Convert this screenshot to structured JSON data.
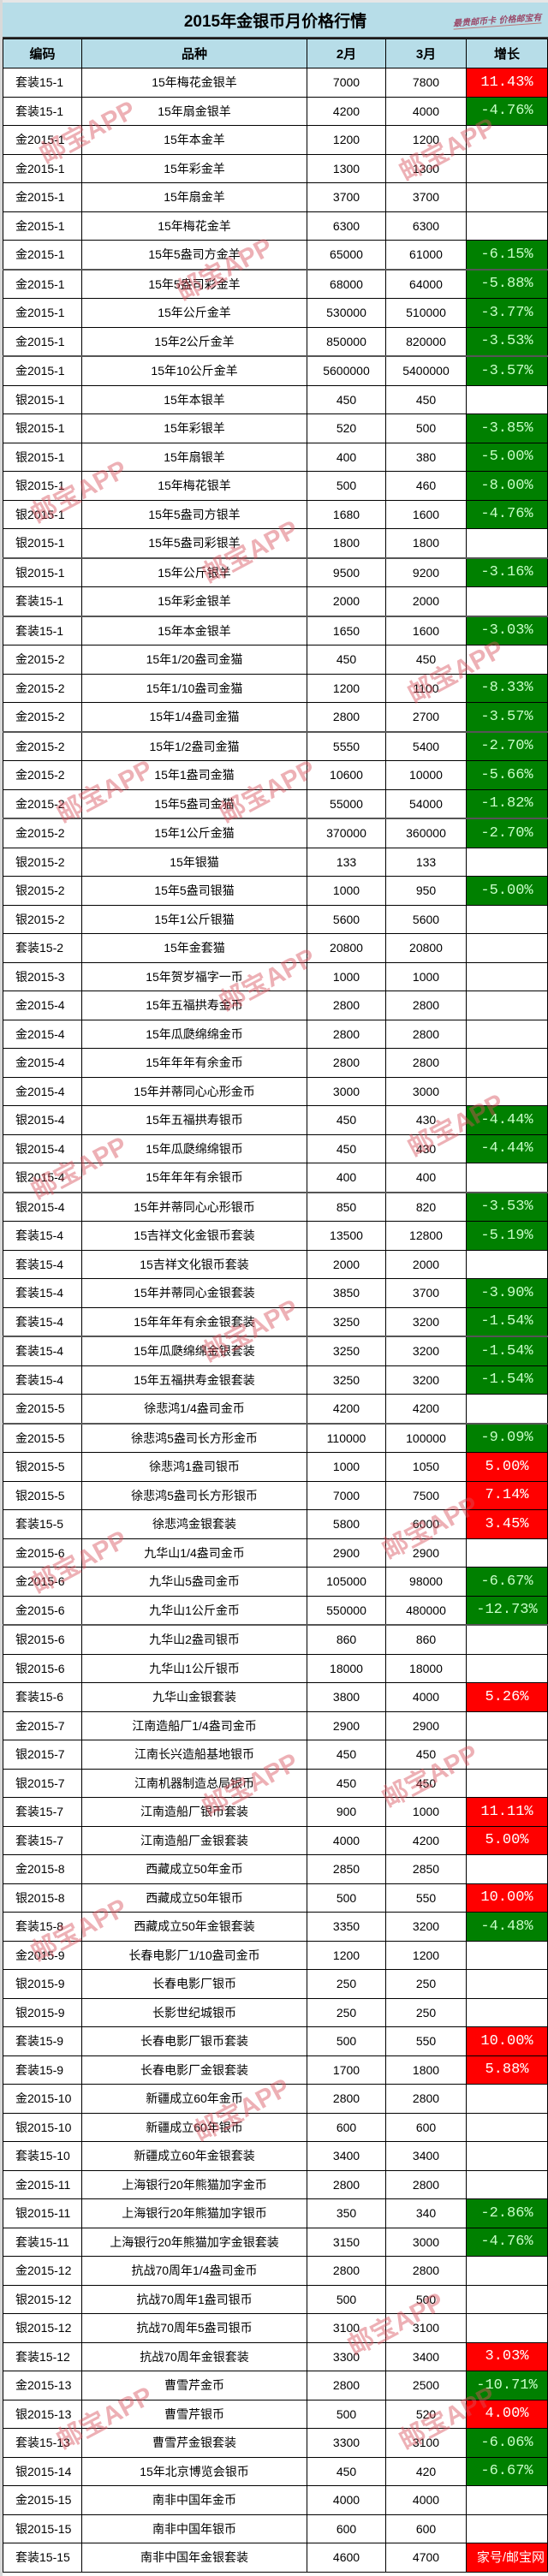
{
  "title": "2015年金银币月价格行情",
  "signature": "最贵邮币卡 价格邮宝有",
  "watermark": "邮宝APP",
  "corner_watermark": "家号/邮宝网",
  "colors": {
    "header_bg": "#b7dde8",
    "up": "#ff0000",
    "down": "#008000"
  },
  "columns": [
    "编码",
    "品种",
    "2月",
    "3月",
    "增长"
  ],
  "rows": [
    [
      "套装15-1",
      "15年梅花金银羊",
      "7000",
      "7800",
      "11.43%",
      "up"
    ],
    [
      "套装15-1",
      "15年扇金银羊",
      "4200",
      "4000",
      "-4.76%",
      "down"
    ],
    [
      "金2015-1",
      "15年本金羊",
      "1200",
      "1200",
      "",
      ""
    ],
    [
      "金2015-1",
      "15年彩金羊",
      "1300",
      "1300",
      "",
      ""
    ],
    [
      "金2015-1",
      "15年扇金羊",
      "3700",
      "3700",
      "",
      ""
    ],
    [
      "金2015-1",
      "15年梅花金羊",
      "6300",
      "6300",
      "",
      ""
    ],
    [
      "金2015-1",
      "15年5盎司方金羊",
      "65000",
      "61000",
      "-6.15%",
      "down"
    ],
    [
      "金2015-1",
      "15年5盎司彩金羊",
      "68000",
      "64000",
      "-5.88%",
      "down"
    ],
    [
      "金2015-1",
      "15年公斤金羊",
      "530000",
      "510000",
      "-3.77%",
      "down"
    ],
    [
      "金2015-1",
      "15年2公斤金羊",
      "850000",
      "820000",
      "-3.53%",
      "down"
    ],
    [
      "金2015-1",
      "15年10公斤金羊",
      "5600000",
      "5400000",
      "-3.57%",
      "down"
    ],
    [
      "银2015-1",
      "15年本银羊",
      "450",
      "450",
      "",
      ""
    ],
    [
      "银2015-1",
      "15年彩银羊",
      "520",
      "500",
      "-3.85%",
      "down"
    ],
    [
      "银2015-1",
      "15年扇银羊",
      "400",
      "380",
      "-5.00%",
      "down"
    ],
    [
      "银2015-1",
      "15年梅花银羊",
      "500",
      "460",
      "-8.00%",
      "down"
    ],
    [
      "银2015-1",
      "15年5盎司方银羊",
      "1680",
      "1600",
      "-4.76%",
      "down"
    ],
    [
      "银2015-1",
      "15年5盎司彩银羊",
      "1800",
      "1800",
      "",
      ""
    ],
    [
      "银2015-1",
      "15年公斤银羊",
      "9500",
      "9200",
      "-3.16%",
      "down"
    ],
    [
      "套装15-1",
      "15年彩金银羊",
      "2000",
      "2000",
      "",
      ""
    ],
    [
      "套装15-1",
      "15年本金银羊",
      "1650",
      "1600",
      "-3.03%",
      "down"
    ],
    [
      "金2015-2",
      "15年1/20盎司金猫",
      "450",
      "450",
      "",
      ""
    ],
    [
      "金2015-2",
      "15年1/10盎司金猫",
      "1200",
      "1100",
      "-8.33%",
      "down"
    ],
    [
      "金2015-2",
      "15年1/4盎司金猫",
      "2800",
      "2700",
      "-3.57%",
      "down"
    ],
    [
      "金2015-2",
      "15年1/2盎司金猫",
      "5550",
      "5400",
      "-2.70%",
      "down"
    ],
    [
      "金2015-2",
      "15年1盎司金猫",
      "10600",
      "10000",
      "-5.66%",
      "down"
    ],
    [
      "金2015-2",
      "15年5盎司金猫",
      "55000",
      "54000",
      "-1.82%",
      "down"
    ],
    [
      "金2015-2",
      "15年1公斤金猫",
      "370000",
      "360000",
      "-2.70%",
      "down"
    ],
    [
      "银2015-2",
      "15年银猫",
      "133",
      "133",
      "",
      ""
    ],
    [
      "银2015-2",
      "15年5盎司银猫",
      "1000",
      "950",
      "-5.00%",
      "down"
    ],
    [
      "银2015-2",
      "15年1公斤银猫",
      "5600",
      "5600",
      "",
      ""
    ],
    [
      "套装15-2",
      "15年金套猫",
      "20800",
      "20800",
      "",
      ""
    ],
    [
      "银2015-3",
      "15年贺岁福字一币",
      "1000",
      "1000",
      "",
      ""
    ],
    [
      "金2015-4",
      "15年五福拱寿金币",
      "2800",
      "2800",
      "",
      ""
    ],
    [
      "金2015-4",
      "15年瓜瓞绵绵金币",
      "2800",
      "2800",
      "",
      ""
    ],
    [
      "金2015-4",
      "15年年年有余金币",
      "2800",
      "2800",
      "",
      ""
    ],
    [
      "金2015-4",
      "15年并蒂同心心形金币",
      "3000",
      "3000",
      "",
      ""
    ],
    [
      "银2015-4",
      "15年五福拱寿银币",
      "450",
      "430",
      "-4.44%",
      "down"
    ],
    [
      "银2015-4",
      "15年瓜瓞绵绵银币",
      "450",
      "430",
      "-4.44%",
      "down"
    ],
    [
      "银2015-4",
      "15年年年有余银币",
      "400",
      "400",
      "",
      ""
    ],
    [
      "银2015-4",
      "15年并蒂同心心形银币",
      "850",
      "820",
      "-3.53%",
      "down"
    ],
    [
      "套装15-4",
      "15吉祥文化金银币套装",
      "13500",
      "12800",
      "-5.19%",
      "down"
    ],
    [
      "套装15-4",
      "15吉祥文化银币套装",
      "2000",
      "2000",
      "",
      ""
    ],
    [
      "套装15-4",
      "15年并蒂同心金银套装",
      "3850",
      "3700",
      "-3.90%",
      "down"
    ],
    [
      "套装15-4",
      "15年年年有余金银套装",
      "3250",
      "3200",
      "-1.54%",
      "down"
    ],
    [
      "套装15-4",
      "15年瓜瓞绵绵金银套装",
      "3250",
      "3200",
      "-1.54%",
      "down"
    ],
    [
      "套装15-4",
      "15年五福拱寿金银套装",
      "3250",
      "3200",
      "-1.54%",
      "down"
    ],
    [
      "金2015-5",
      "徐悲鸿1/4盎司金币",
      "4200",
      "4200",
      "",
      ""
    ],
    [
      "金2015-5",
      "徐悲鸿5盎司长方形金币",
      "110000",
      "100000",
      "-9.09%",
      "down"
    ],
    [
      "银2015-5",
      "徐悲鸿1盎司银币",
      "1000",
      "1050",
      "5.00%",
      "up"
    ],
    [
      "银2015-5",
      "徐悲鸿5盎司长方形银币",
      "7000",
      "7500",
      "7.14%",
      "up"
    ],
    [
      "套装15-5",
      "徐悲鸿金银套装",
      "5800",
      "6000",
      "3.45%",
      "up"
    ],
    [
      "金2015-6",
      "九华山1/4盎司金币",
      "2900",
      "2900",
      "",
      ""
    ],
    [
      "金2015-6",
      "九华山5盎司金币",
      "105000",
      "98000",
      "-6.67%",
      "down"
    ],
    [
      "金2015-6",
      "九华山1公斤金币",
      "550000",
      "480000",
      "-12.73%",
      "down"
    ],
    [
      "银2015-6",
      "九华山2盎司银币",
      "860",
      "860",
      "",
      ""
    ],
    [
      "银2015-6",
      "九华山1公斤银币",
      "18000",
      "18000",
      "",
      ""
    ],
    [
      "套装15-6",
      "九华山金银套装",
      "3800",
      "4000",
      "5.26%",
      "up"
    ],
    [
      "金2015-7",
      "江南造船厂1/4盎司金币",
      "2900",
      "2900",
      "",
      ""
    ],
    [
      "银2015-7",
      "江南长兴造船基地银币",
      "450",
      "450",
      "",
      ""
    ],
    [
      "银2015-7",
      "江南机器制造总局银币",
      "450",
      "450",
      "",
      ""
    ],
    [
      "套装15-7",
      "江南造船厂银币套装",
      "900",
      "1000",
      "11.11%",
      "up"
    ],
    [
      "套装15-7",
      "江南造船厂金银套装",
      "4000",
      "4200",
      "5.00%",
      "up"
    ],
    [
      "金2015-8",
      "西藏成立50年金币",
      "2850",
      "2850",
      "",
      ""
    ],
    [
      "银2015-8",
      "西藏成立50年银币",
      "500",
      "550",
      "10.00%",
      "up"
    ],
    [
      "套装15-8",
      "西藏成立50年金银套装",
      "3350",
      "3200",
      "-4.48%",
      "down"
    ],
    [
      "金2015-9",
      "长春电影厂1/10盎司金币",
      "1200",
      "1200",
      "",
      ""
    ],
    [
      "银2015-9",
      "长春电影厂银币",
      "250",
      "250",
      "",
      ""
    ],
    [
      "银2015-9",
      "长影世纪城银币",
      "250",
      "250",
      "",
      ""
    ],
    [
      "套装15-9",
      "长春电影厂银币套装",
      "500",
      "550",
      "10.00%",
      "up"
    ],
    [
      "套装15-9",
      "长春电影厂金银套装",
      "1700",
      "1800",
      "5.88%",
      "up"
    ],
    [
      "金2015-10",
      "新疆成立60年金币",
      "2800",
      "2800",
      "",
      ""
    ],
    [
      "银2015-10",
      "新疆成立60年银币",
      "600",
      "600",
      "",
      ""
    ],
    [
      "套装15-10",
      "新疆成立60年金银套装",
      "3400",
      "3400",
      "",
      ""
    ],
    [
      "金2015-11",
      "上海银行20年熊猫加字金币",
      "2800",
      "2800",
      "",
      ""
    ],
    [
      "银2015-11",
      "上海银行20年熊猫加字银币",
      "350",
      "340",
      "-2.86%",
      "down"
    ],
    [
      "套装15-11",
      "上海银行20年熊猫加字金银套装",
      "3150",
      "3000",
      "-4.76%",
      "down"
    ],
    [
      "金2015-12",
      "抗战70周年1/4盎司金币",
      "2800",
      "2800",
      "",
      ""
    ],
    [
      "银2015-12",
      "抗战70周年1盎司银币",
      "500",
      "500",
      "",
      ""
    ],
    [
      "银2015-12",
      "抗战70周年5盎司银币",
      "3100",
      "3100",
      "",
      ""
    ],
    [
      "套装15-12",
      "抗战70周年金银套装",
      "3300",
      "3400",
      "3.03%",
      "up"
    ],
    [
      "金2015-13",
      "曹雪芹金币",
      "2800",
      "2500",
      "-10.71%",
      "down"
    ],
    [
      "银2015-13",
      "曹雪芹银币",
      "500",
      "520",
      "4.00%",
      "up"
    ],
    [
      "套装15-13",
      "曹雪芹金银套装",
      "3300",
      "3100",
      "-6.06%",
      "down"
    ],
    [
      "银2015-14",
      "15年北京博览会银币",
      "450",
      "420",
      "-6.67%",
      "down"
    ],
    [
      "金2015-15",
      "南非中国年金币",
      "4000",
      "4000",
      "",
      ""
    ],
    [
      "银2015-15",
      "南非中国年银币",
      "600",
      "600",
      "",
      ""
    ],
    [
      "套装15-15",
      "南非中国年金银套装",
      "4600",
      "4700",
      "",
      "up"
    ]
  ]
}
